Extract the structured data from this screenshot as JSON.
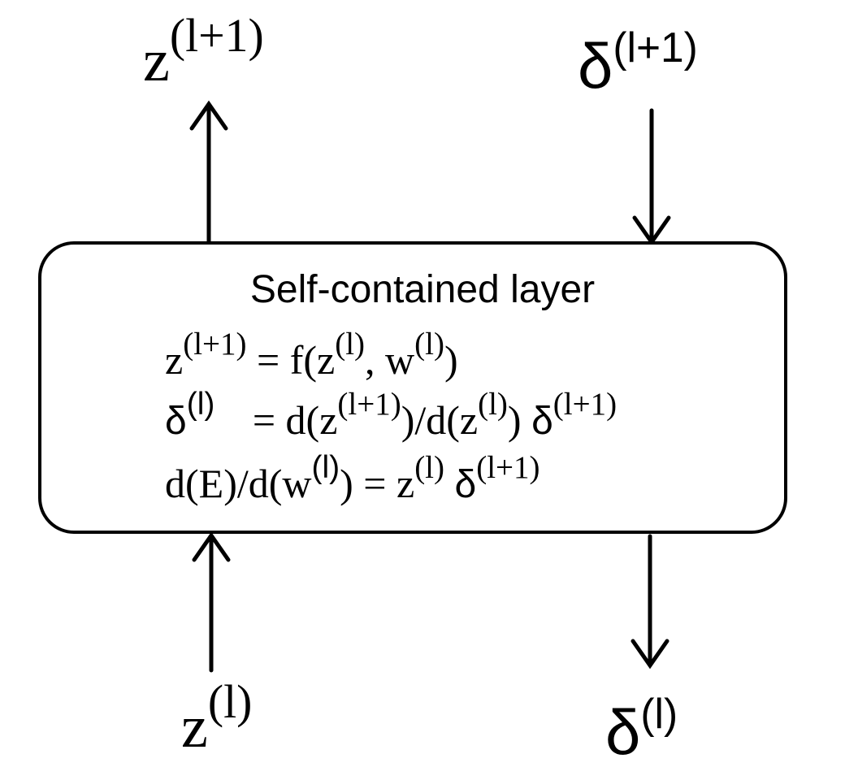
{
  "top_left": {
    "base": "z",
    "sup": "(l+1)"
  },
  "top_right": {
    "base": "δ",
    "sup": "(l+1)"
  },
  "bottom_left": {
    "base": "z",
    "sup": "(l)"
  },
  "bottom_right": {
    "base": "δ",
    "sup": "(l)"
  },
  "box": {
    "title": "Self-contained layer",
    "eq1": {
      "lhs_base": "z",
      "lhs_sup": "(l+1)",
      "rhs_a": "= f(z",
      "rhs_sup1": "(l)",
      "rhs_b": ", w",
      "rhs_sup2": "(l)",
      "rhs_c": ")"
    },
    "eq2": {
      "lhs_base": "δ",
      "lhs_sup": "(l)",
      "rhs_a": "= d(z",
      "rhs_sup1": "(l+1)",
      "rhs_b": ")/d(z",
      "rhs_sup2": "(l)",
      "rhs_c": ") ",
      "rhs_delta": "δ",
      "rhs_sup3": "(l+1)"
    },
    "eq3": {
      "lhs_a": "d(E)/d(w",
      "lhs_sup": "(l)",
      "lhs_b": ") = z",
      "rhs_sup1": "(l)",
      "rhs_c": " ",
      "rhs_delta": "δ",
      "rhs_sup2": "(l+1)"
    }
  }
}
